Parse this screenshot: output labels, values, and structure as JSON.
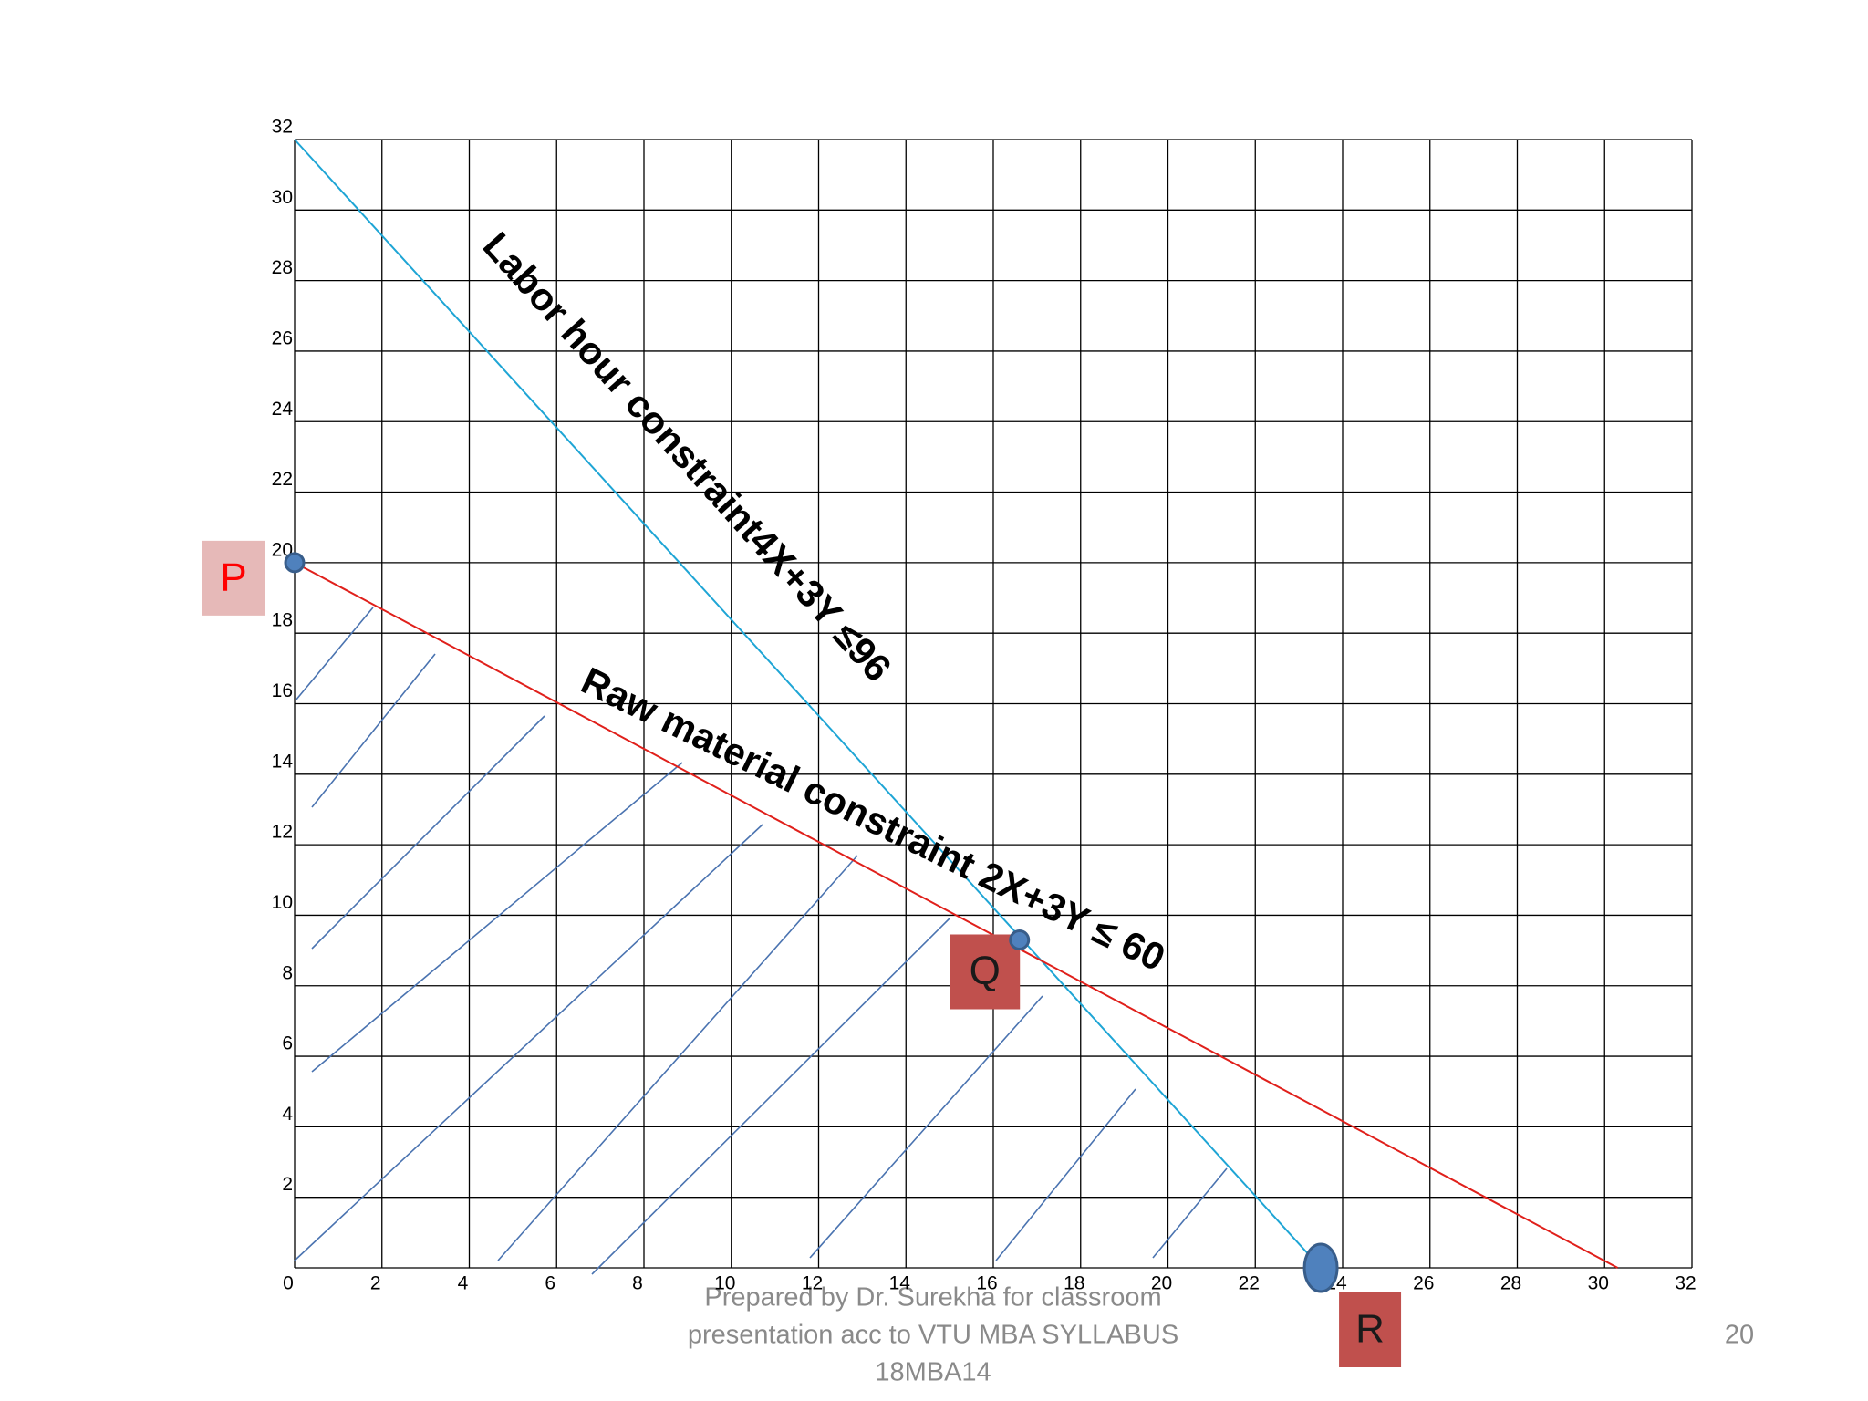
{
  "chart_data": {
    "type": "line",
    "xlim": [
      0,
      32
    ],
    "ylim": [
      0,
      32
    ],
    "xticks": [
      0,
      2,
      4,
      6,
      8,
      10,
      12,
      14,
      16,
      18,
      20,
      22,
      24,
      26,
      28,
      30,
      32
    ],
    "yticks": [
      2,
      4,
      6,
      8,
      10,
      12,
      14,
      16,
      18,
      20,
      22,
      24,
      26,
      28,
      30,
      32
    ],
    "grid": true,
    "series": [
      {
        "label": "Labor hour constraint4X+3Y ≤96",
        "color": "#1ea5d5",
        "x": [
          0,
          23.5
        ],
        "values": [
          32,
          0
        ]
      },
      {
        "label": "Raw material  constraint 2X+3Y ≤ 60",
        "color": "#e0201b",
        "x": [
          0,
          30.3
        ],
        "values": [
          20,
          0
        ]
      }
    ],
    "points": [
      {
        "label": "P",
        "x": 0,
        "y": 20
      },
      {
        "label": "Q",
        "x": 16.6,
        "y": 9.3
      },
      {
        "label": "R",
        "x": 23.5,
        "y": 0
      }
    ],
    "point_color": "#4f81bd"
  },
  "footer": {
    "credit": [
      "Prepared by Dr. Surekha for classroom",
      "presentation acc to VTU MBA SYLLABUS",
      "18MBA14"
    ],
    "page": 20
  }
}
